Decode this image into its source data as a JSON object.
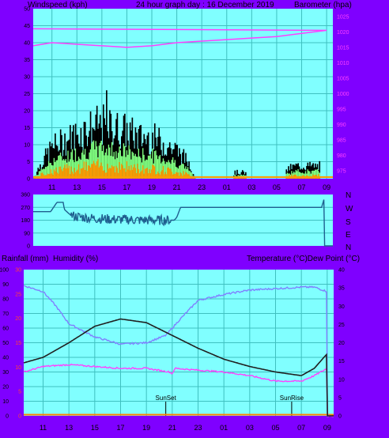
{
  "header": {
    "left": "Windspeed (kph)",
    "center": "24 hour graph day : 16 December 2019",
    "right": "Barometer (hpa)"
  },
  "dir_letters": [
    "N",
    "W",
    "S",
    "E",
    "N"
  ],
  "mid_header": {
    "left": "Rainfall (mm)",
    "left2": "Humidity (%)",
    "right": "Temperature (°C)Dew Point (°C)"
  },
  "markers": {
    "sunset": "SunSet",
    "sunrise": "SunRise"
  },
  "colors": {
    "plot_bg": "#80ffff",
    "frame": "#7f00ff",
    "grid": "#40c0c0",
    "wind_max": "#000000",
    "wind_gust": "#80ff80",
    "wind_avg": "#ff9900",
    "pressure": "#ff40ff",
    "direction": "#1f5f8f",
    "temperature": "#202020",
    "dewpoint": "#ff40ff",
    "humidity": "#8080ff",
    "rain": "#ff8000"
  },
  "chart_data": [
    {
      "type": "bar",
      "x_ticks": [
        "11",
        "13",
        "15",
        "17",
        "19",
        "21",
        "23",
        "01",
        "03",
        "05",
        "07",
        "09"
      ],
      "left_axis": {
        "label": "Windspeed (kph)",
        "ticks": [
          "0",
          "5",
          "10",
          "15",
          "20",
          "25",
          "30",
          "35",
          "40",
          "45",
          "50"
        ],
        "range": [
          0,
          50
        ]
      },
      "right_axis": {
        "label": "Barometer (hpa)",
        "ticks": [
          "975",
          "980",
          "985",
          "990",
          "995",
          "1000",
          "1005",
          "1010",
          "1015",
          "1020",
          "1025"
        ],
        "range": [
          972.5,
          1027.5
        ]
      },
      "wind_profile": [
        [
          9.5,
          0
        ],
        [
          10,
          4
        ],
        [
          11,
          10
        ],
        [
          12,
          12
        ],
        [
          13,
          14
        ],
        [
          14,
          16
        ],
        [
          15,
          17
        ],
        [
          16,
          16
        ],
        [
          17,
          15
        ],
        [
          18,
          13
        ],
        [
          19,
          13
        ],
        [
          20,
          11
        ],
        [
          21,
          9
        ],
        [
          22,
          5
        ],
        [
          22.5,
          0
        ],
        [
          25.5,
          0
        ],
        [
          25.6,
          2
        ],
        [
          26.5,
          2
        ],
        [
          26.6,
          0
        ],
        [
          29.7,
          0
        ],
        [
          29.8,
          3
        ],
        [
          30.5,
          4
        ],
        [
          32.5,
          4
        ]
      ],
      "wind_peak": 26,
      "pressure": [
        [
          9.5,
          1015.5
        ],
        [
          11,
          1016.5
        ],
        [
          13,
          1016
        ],
        [
          15,
          1015.5
        ],
        [
          17,
          1015
        ],
        [
          19,
          1015.5
        ],
        [
          21,
          1016.5
        ],
        [
          23,
          1017
        ],
        [
          1,
          1017.5
        ],
        [
          3,
          1018
        ],
        [
          5,
          1018.5
        ],
        [
          7,
          1019.5
        ],
        [
          9,
          1020.5
        ],
        [
          9.5,
          1021
        ]
      ]
    },
    {
      "type": "line",
      "name": "wind direction",
      "y_ticks": [
        "0",
        "90",
        "180",
        "270",
        "360"
      ],
      "y_range": [
        0,
        360
      ],
      "direction": [
        [
          9.5,
          240
        ],
        [
          10.9,
          240
        ],
        [
          11.4,
          305
        ],
        [
          11.9,
          305
        ],
        [
          12,
          255
        ],
        [
          12.5,
          215
        ],
        [
          13,
          205
        ],
        [
          14,
          195
        ],
        [
          15,
          190
        ],
        [
          16,
          185
        ],
        [
          17,
          185
        ],
        [
          18,
          180
        ],
        [
          19,
          180
        ],
        [
          20,
          180
        ],
        [
          20.8,
          180
        ],
        [
          21,
          200
        ],
        [
          21.3,
          270
        ],
        [
          23,
          270
        ],
        [
          1,
          270
        ],
        [
          3,
          270
        ],
        [
          5,
          270
        ],
        [
          7,
          270
        ],
        [
          8.6,
          270
        ],
        [
          8.8,
          330
        ],
        [
          9.5,
          345
        ]
      ],
      "noisy_from": 12.5,
      "noisy_to": 20.5
    },
    {
      "type": "line",
      "x_ticks": [
        "11",
        "13",
        "15",
        "17",
        "19",
        "21",
        "23",
        "01",
        "03",
        "05",
        "07",
        "09"
      ],
      "humidity_axis": {
        "label": "Humidity (%)",
        "ticks": [
          "0",
          "10",
          "20",
          "30",
          "40",
          "50",
          "60",
          "70",
          "80",
          "90",
          "100"
        ],
        "range": [
          0,
          100
        ]
      },
      "rain_axis": {
        "label": "Rainfall (mm)",
        "ticks": [
          "0",
          "5",
          "10",
          "15",
          "20",
          "25",
          "30"
        ],
        "range": [
          0,
          30
        ]
      },
      "temp_axis": {
        "label": "Temperature (°C)Dew Point (°C)",
        "ticks": [
          "0",
          "5",
          "10",
          "15",
          "20",
          "25",
          "30",
          "35",
          "40"
        ],
        "range": [
          0,
          40
        ]
      },
      "series": [
        {
          "name": "Temperature (°C)",
          "values": [
            [
              9.5,
              14.5
            ],
            [
              11,
              16
            ],
            [
              13,
              20
            ],
            [
              15,
              24.5
            ],
            [
              17,
              26.5
            ],
            [
              19,
              25.5
            ],
            [
              21,
              22
            ],
            [
              23,
              18.5
            ],
            [
              1,
              15.5
            ],
            [
              3,
              13.5
            ],
            [
              5,
              12
            ],
            [
              7,
              11
            ],
            [
              8,
              13
            ],
            [
              9,
              17
            ],
            [
              9.5,
              19
            ]
          ]
        },
        {
          "name": "Dew Point (°C)",
          "values": [
            [
              9.5,
              12
            ],
            [
              11,
              13.5
            ],
            [
              13,
              14
            ],
            [
              15,
              13.5
            ],
            [
              17,
              13
            ],
            [
              19,
              13
            ],
            [
              20.8,
              12
            ],
            [
              21,
              11.5
            ],
            [
              21.2,
              13
            ],
            [
              23,
              12.5
            ],
            [
              1,
              12
            ],
            [
              3,
              11
            ],
            [
              5,
              9.5
            ],
            [
              7,
              9.5
            ],
            [
              8,
              11
            ],
            [
              9,
              13
            ],
            [
              9.5,
              13
            ]
          ]
        },
        {
          "name": "Humidity (%)",
          "values": [
            [
              9.5,
              89
            ],
            [
              11,
              85
            ],
            [
              12,
              75
            ],
            [
              13,
              63
            ],
            [
              15,
              54
            ],
            [
              17,
              49
            ],
            [
              19,
              50
            ],
            [
              20.5,
              55
            ],
            [
              21.5,
              65
            ],
            [
              23,
              79
            ],
            [
              1,
              83
            ],
            [
              3,
              86
            ],
            [
              5,
              87
            ],
            [
              7,
              88
            ],
            [
              8,
              88
            ],
            [
              9,
              85
            ],
            [
              9.5,
              75
            ]
          ]
        },
        {
          "name": "Rainfall (mm)",
          "values": [
            [
              9.5,
              0
            ],
            [
              9.5,
              0
            ]
          ]
        }
      ],
      "sunset_hour": 20.5,
      "sunrise_hour": 6.25
    }
  ]
}
